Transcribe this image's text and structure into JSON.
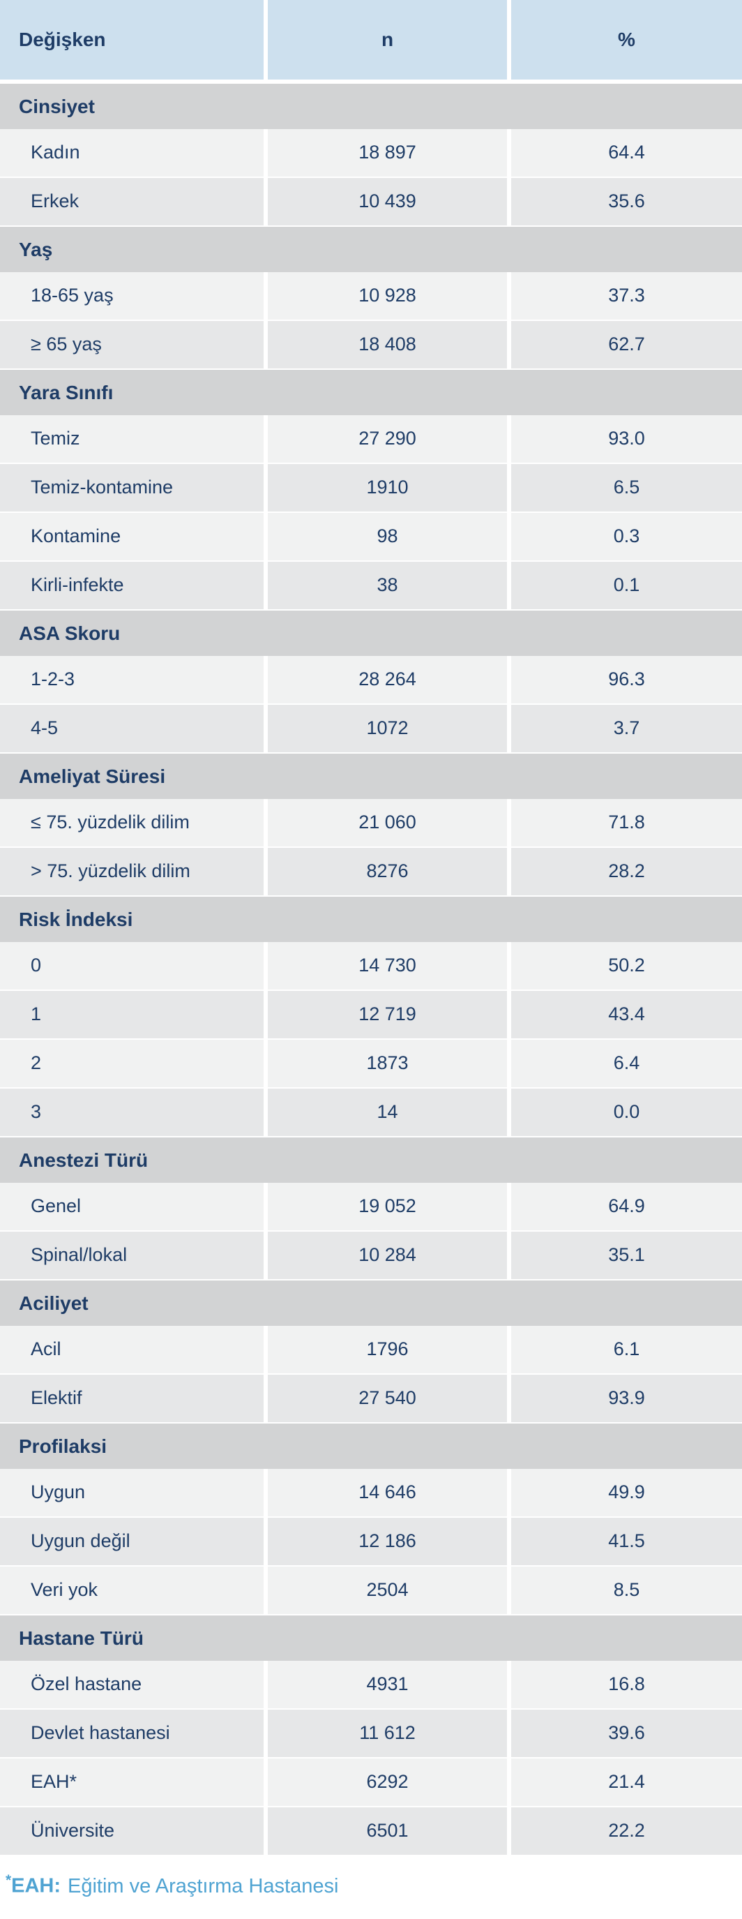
{
  "chart_data": {
    "type": "table",
    "columns": [
      "Değişken",
      "n",
      "%"
    ],
    "groups": [
      {
        "group": "Cinsiyet",
        "rows": [
          {
            "label": "Kadın",
            "n": "18 897",
            "pct": "64.4"
          },
          {
            "label": "Erkek",
            "n": "10 439",
            "pct": "35.6"
          }
        ]
      },
      {
        "group": "Yaş",
        "rows": [
          {
            "label": "18-65 yaş",
            "n": "10 928",
            "pct": "37.3"
          },
          {
            "label": "≥ 65 yaş",
            "n": "18 408",
            "pct": "62.7"
          }
        ]
      },
      {
        "group": "Yara Sınıfı",
        "rows": [
          {
            "label": "Temiz",
            "n": "27 290",
            "pct": "93.0"
          },
          {
            "label": "Temiz-kontamine",
            "n": "1910",
            "pct": "6.5"
          },
          {
            "label": "Kontamine",
            "n": "98",
            "pct": "0.3"
          },
          {
            "label": "Kirli-infekte",
            "n": "38",
            "pct": "0.1"
          }
        ]
      },
      {
        "group": "ASA Skoru",
        "rows": [
          {
            "label": "1-2-3",
            "n": "28 264",
            "pct": "96.3"
          },
          {
            "label": "4-5",
            "n": "1072",
            "pct": "3.7"
          }
        ]
      },
      {
        "group": "Ameliyat Süresi",
        "rows": [
          {
            "label": "≤ 75. yüzdelik dilim",
            "n": "21 060",
            "pct": "71.8"
          },
          {
            "label": "> 75. yüzdelik dilim",
            "n": "8276",
            "pct": "28.2"
          }
        ]
      },
      {
        "group": "Risk İndeksi",
        "rows": [
          {
            "label": "0",
            "n": "14 730",
            "pct": "50.2"
          },
          {
            "label": "1",
            "n": "12 719",
            "pct": "43.4"
          },
          {
            "label": "2",
            "n": "1873",
            "pct": "6.4"
          },
          {
            "label": "3",
            "n": "14",
            "pct": "0.0"
          }
        ]
      },
      {
        "group": "Anestezi Türü",
        "rows": [
          {
            "label": "Genel",
            "n": "19 052",
            "pct": "64.9"
          },
          {
            "label": "Spinal/lokal",
            "n": "10 284",
            "pct": "35.1"
          }
        ]
      },
      {
        "group": "Aciliyet",
        "rows": [
          {
            "label": "Acil",
            "n": "1796",
            "pct": "6.1"
          },
          {
            "label": "Elektif",
            "n": "27 540",
            "pct": "93.9"
          }
        ]
      },
      {
        "group": "Profilaksi",
        "rows": [
          {
            "label": "Uygun",
            "n": "14 646",
            "pct": "49.9"
          },
          {
            "label": "Uygun değil",
            "n": "12 186",
            "pct": "41.5"
          },
          {
            "label": "Veri yok",
            "n": "2504",
            "pct": "8.5"
          }
        ]
      },
      {
        "group": "Hastane Türü",
        "rows": [
          {
            "label": "Özel hastane",
            "n": "4931",
            "pct": "16.8"
          },
          {
            "label": "Devlet hastanesi",
            "n": "11 612",
            "pct": "39.6"
          },
          {
            "label": "EAH*",
            "n": "6292",
            "pct": "21.4"
          },
          {
            "label": "Üniversite",
            "n": "6501",
            "pct": "22.2"
          }
        ]
      }
    ]
  },
  "footnote": {
    "marker": "*",
    "label": "EAH:",
    "text": "Eğitim ve Araştırma Hastanesi"
  },
  "colors": {
    "header_bg": "#cde0ee",
    "section_bg": "#d2d3d4",
    "row_odd_bg": "#f1f2f2",
    "row_even_bg": "#e6e7e8",
    "text": "#1e3c66",
    "footnote": "#4fa3d2",
    "separator": "#ffffff"
  }
}
